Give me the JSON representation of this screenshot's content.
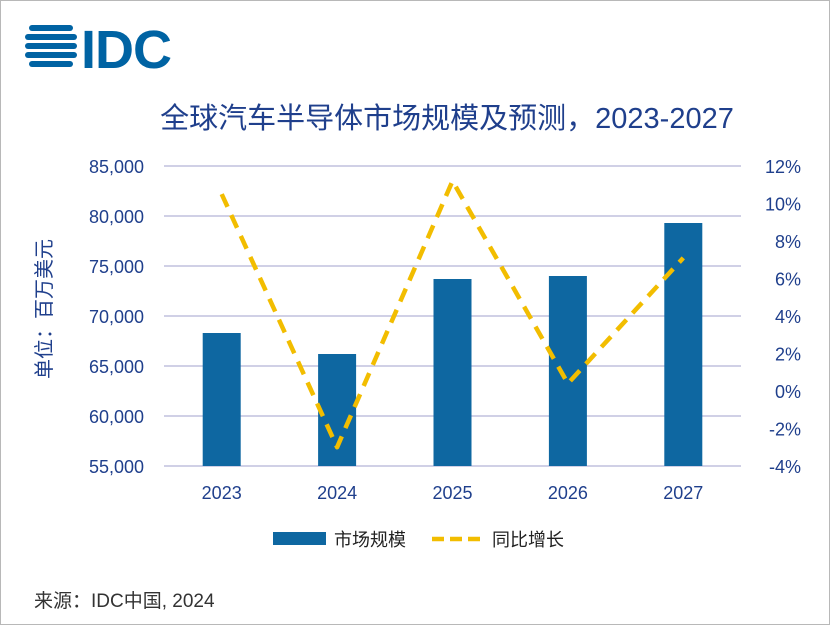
{
  "logo": {
    "text": "IDC",
    "color": "#0063a3"
  },
  "source": "来源：IDC中国, 2024",
  "chart_data": {
    "type": "bar",
    "title": "全球汽车半导体市场规模及预测，2023-2027",
    "ylabel": "单位：百万美元",
    "categories": [
      "2023",
      "2024",
      "2025",
      "2026",
      "2027"
    ],
    "ylim": [
      55000,
      85000
    ],
    "y_ticks": [
      "55,000",
      "60,000",
      "65,000",
      "70,000",
      "75,000",
      "80,000",
      "85,000"
    ],
    "y2lim": [
      -4,
      12
    ],
    "y2_ticks": [
      "-4%",
      "-2%",
      "0%",
      "2%",
      "4%",
      "6%",
      "8%",
      "10%",
      "12%"
    ],
    "grid": true,
    "legend_position": "bottom",
    "series": [
      {
        "name": "市场规模",
        "type": "bar",
        "axis": "left",
        "color": "#0e67a1",
        "values": [
          68300,
          66200,
          73700,
          74000,
          79300
        ]
      },
      {
        "name": "同比增长",
        "type": "line",
        "style": "dashed",
        "axis": "right",
        "color": "#f2bd00",
        "values": [
          10.5,
          -3.0,
          11.2,
          0.4,
          7.1
        ]
      }
    ]
  }
}
